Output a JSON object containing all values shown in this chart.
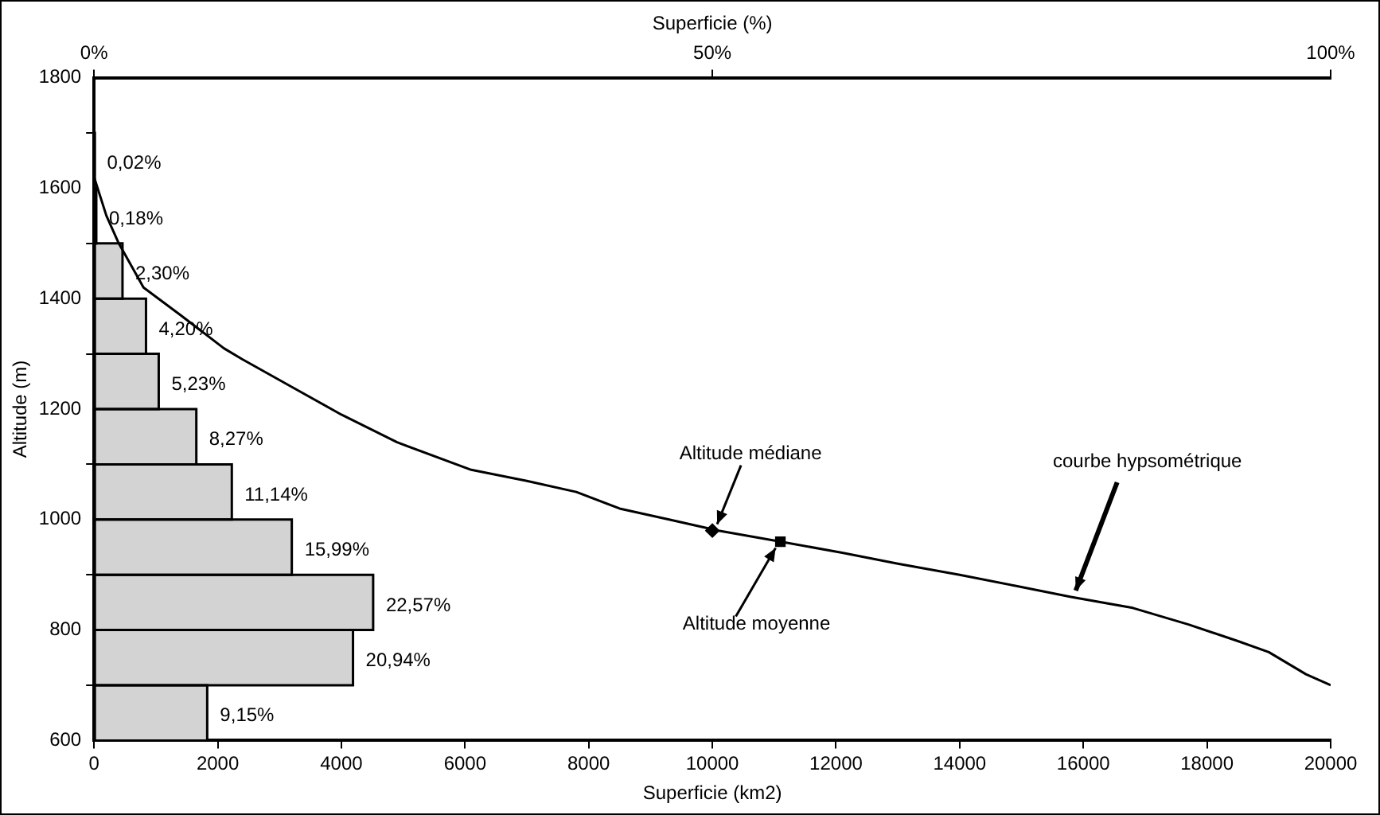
{
  "chart_data": {
    "type": "histogram",
    "orientation": "horizontal",
    "xlabel": "Superficie (km2)",
    "x2label": "Superficie (%)",
    "ylabel": "Altitude (m)",
    "xlim": [
      0,
      20000
    ],
    "xticks": [
      0,
      2000,
      4000,
      6000,
      8000,
      10000,
      12000,
      14000,
      16000,
      18000,
      20000
    ],
    "x2lim": [
      0,
      100
    ],
    "x2ticks": [
      {
        "value": 0,
        "label": "0%"
      },
      {
        "value": 50,
        "label": "50%"
      },
      {
        "value": 100,
        "label": "100%"
      }
    ],
    "ylim": [
      600,
      1800
    ],
    "yticks": [
      600,
      800,
      1000,
      1200,
      1400,
      1600,
      1800
    ],
    "grid": false,
    "legend": false,
    "series": [
      {
        "axis": "x2",
        "color": "#d3d3d3",
        "bins": [
          600,
          700,
          800,
          900,
          1000,
          1100,
          1200,
          1300,
          1400,
          1500,
          1600,
          1700
        ],
        "values": [
          9.15,
          20.94,
          22.57,
          15.99,
          11.14,
          8.27,
          5.23,
          4.2,
          2.3,
          0.18,
          0.02
        ],
        "value_labels": [
          "9,15%",
          "20,94%",
          "22,57%",
          "15,99%",
          "11,14%",
          "8,27%",
          "5,23%",
          "4,20%",
          "2,30%",
          "0,18%",
          "0,02%"
        ]
      },
      {
        "type": "line",
        "color": "#000000",
        "marker": "none",
        "x": [
          1620,
          1550,
          1500,
          1420,
          1370,
          1310,
          1290,
          1240,
          1190,
          1140,
          1090,
          1070,
          1050,
          1020,
          1000,
          980,
          960,
          940,
          920,
          900,
          880,
          860,
          840,
          810,
          780,
          760,
          720,
          700
        ],
        "values": [
          0,
          200,
          400,
          800,
          1400,
          2100,
          2400,
          3200,
          4000,
          4900,
          6100,
          7000,
          7800,
          8500,
          9300,
          10100,
          11100,
          12100,
          13000,
          14000,
          14900,
          15800,
          16800,
          17700,
          18500,
          19000,
          19600,
          20000
        ]
      },
      {
        "type": "scatter",
        "color": "#000000",
        "marker": "diamond",
        "x": [
          980
        ],
        "values": [
          10000
        ]
      },
      {
        "type": "scatter",
        "color": "#000000",
        "marker": "square",
        "x": [
          960
        ],
        "values": [
          11100
        ]
      }
    ],
    "annotations": [
      {
        "text": "Altitude médiane",
        "x": 10000,
        "y": 980
      },
      {
        "text": "Altitude moyenne",
        "x": 11100,
        "y": 960
      },
      {
        "text": "courbe hypsométrique",
        "x": 15800,
        "y": 860
      }
    ]
  }
}
